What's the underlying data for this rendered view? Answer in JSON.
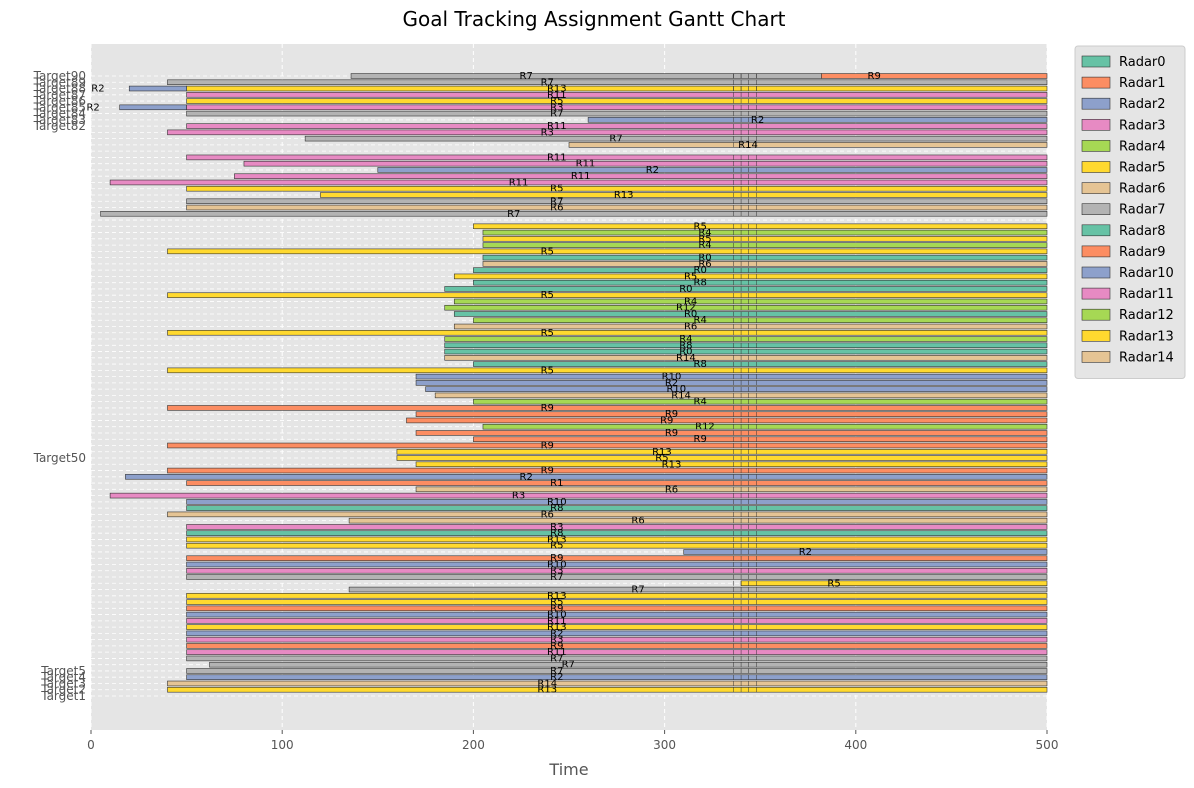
{
  "chart_data": {
    "type": "gantt",
    "title": "Goal Tracking Assignment Gantt Chart",
    "xlabel": "Time",
    "ylabel": "",
    "xlim": [
      0,
      500
    ],
    "xticks": [
      0,
      100,
      200,
      300,
      400,
      500
    ],
    "grid": true,
    "legend_position": "outside-right-top",
    "colors": {
      "background": "#e5e5e5",
      "grid": "#ffffff",
      "text": "#555555"
    },
    "radars": [
      {
        "name": "Radar0",
        "color": "#66c2a5"
      },
      {
        "name": "Radar1",
        "color": "#fc8d62"
      },
      {
        "name": "Radar2",
        "color": "#8da0cb"
      },
      {
        "name": "Radar3",
        "color": "#e78ac3"
      },
      {
        "name": "Radar4",
        "color": "#a6d854"
      },
      {
        "name": "Radar5",
        "color": "#ffd92f"
      },
      {
        "name": "Radar6",
        "color": "#e5c494"
      },
      {
        "name": "Radar7",
        "color": "#b3b3b3"
      },
      {
        "name": "Radar8",
        "color": "#66c2a5"
      },
      {
        "name": "Radar9",
        "color": "#fc8d62"
      },
      {
        "name": "Radar10",
        "color": "#8da0cb"
      },
      {
        "name": "Radar11",
        "color": "#e78ac3"
      },
      {
        "name": "Radar12",
        "color": "#a6d854"
      },
      {
        "name": "Radar13",
        "color": "#ffd92f"
      },
      {
        "name": "Radar14",
        "color": "#e5c494"
      }
    ],
    "targets_top": [
      "Target90",
      "Target89",
      "Target88",
      "Target87",
      "Target86",
      "Target85",
      "Target84",
      "Target83",
      "Target82"
    ],
    "targets_bottom": [
      "Target5",
      "Target4",
      "Target3",
      "Target2",
      "Target1"
    ],
    "targets_mid": [
      "Target50"
    ],
    "tasks": [
      {
        "row": 0,
        "start": 136,
        "end": 382,
        "radar": 7,
        "label": "R7"
      },
      {
        "row": 0,
        "start": 382,
        "end": 500,
        "radar": 9,
        "label": "R9"
      },
      {
        "row": 1,
        "start": 40,
        "end": 500,
        "radar": 7,
        "label": "R7"
      },
      {
        "row": 2,
        "start": 50,
        "end": 500,
        "radar": 13,
        "label": "R13"
      },
      {
        "row": 2,
        "start": 20,
        "end": 50,
        "radar": 2,
        "label": "R2"
      },
      {
        "row": 3,
        "start": 50,
        "end": 500,
        "radar": 11,
        "label": "R11"
      },
      {
        "row": 4,
        "start": 50,
        "end": 500,
        "radar": 5,
        "label": "R5"
      },
      {
        "row": 5,
        "start": 15,
        "end": 50,
        "radar": 2,
        "label": "R2"
      },
      {
        "row": 5,
        "start": 50,
        "end": 500,
        "radar": 3,
        "label": "R3"
      },
      {
        "row": 6,
        "start": 50,
        "end": 500,
        "radar": 7,
        "label": "R7"
      },
      {
        "row": 7,
        "start": 260,
        "end": 500,
        "radar": 2,
        "label": "R2"
      },
      {
        "row": 8,
        "start": 50,
        "end": 500,
        "radar": 11,
        "label": "R11"
      },
      {
        "row": 9,
        "start": 40,
        "end": 500,
        "radar": 3,
        "label": "R3"
      },
      {
        "row": 10,
        "start": 112,
        "end": 500,
        "radar": 7,
        "label": "R7"
      },
      {
        "row": 11,
        "start": 250,
        "end": 500,
        "radar": 14,
        "label": "R14"
      },
      {
        "row": 13,
        "start": 50,
        "end": 500,
        "radar": 11,
        "label": "R11"
      },
      {
        "row": 14,
        "start": 80,
        "end": 500,
        "radar": 11,
        "label": "R11"
      },
      {
        "row": 15,
        "start": 150,
        "end": 500,
        "radar": 2,
        "label": "R2"
      },
      {
        "row": 16,
        "start": 75,
        "end": 500,
        "radar": 11,
        "label": "R11"
      },
      {
        "row": 17,
        "start": 10,
        "end": 500,
        "radar": 11,
        "label": "R11"
      },
      {
        "row": 18,
        "start": 50,
        "end": 500,
        "radar": 5,
        "label": "R5"
      },
      {
        "row": 19,
        "start": 120,
        "end": 500,
        "radar": 13,
        "label": "R13"
      },
      {
        "row": 20,
        "start": 50,
        "end": 500,
        "radar": 7,
        "label": "R7"
      },
      {
        "row": 21,
        "start": 50,
        "end": 500,
        "radar": 6,
        "label": "R6"
      },
      {
        "row": 22,
        "start": 5,
        "end": 500,
        "radar": 7,
        "label": "R7"
      },
      {
        "row": 24,
        "start": 200,
        "end": 500,
        "radar": 5,
        "label": "R5"
      },
      {
        "row": 25,
        "start": 205,
        "end": 500,
        "radar": 4,
        "label": "R4"
      },
      {
        "row": 26,
        "start": 205,
        "end": 500,
        "radar": 5,
        "label": "R5"
      },
      {
        "row": 27,
        "start": 205,
        "end": 500,
        "radar": 4,
        "label": "R4"
      },
      {
        "row": 28,
        "start": 40,
        "end": 500,
        "radar": 5,
        "label": "R5"
      },
      {
        "row": 29,
        "start": 205,
        "end": 500,
        "radar": 0,
        "label": "R0"
      },
      {
        "row": 30,
        "start": 205,
        "end": 500,
        "radar": 6,
        "label": "R6"
      },
      {
        "row": 31,
        "start": 200,
        "end": 500,
        "radar": 0,
        "label": "R0"
      },
      {
        "row": 32,
        "start": 190,
        "end": 500,
        "radar": 5,
        "label": "R5"
      },
      {
        "row": 33,
        "start": 200,
        "end": 500,
        "radar": 8,
        "label": "R8"
      },
      {
        "row": 34,
        "start": 185,
        "end": 500,
        "radar": 0,
        "label": "R0"
      },
      {
        "row": 35,
        "start": 40,
        "end": 500,
        "radar": 5,
        "label": "R5"
      },
      {
        "row": 36,
        "start": 190,
        "end": 500,
        "radar": 4,
        "label": "R4"
      },
      {
        "row": 37,
        "start": 185,
        "end": 500,
        "radar": 12,
        "label": "R12"
      },
      {
        "row": 38,
        "start": 190,
        "end": 500,
        "radar": 0,
        "label": "R0"
      },
      {
        "row": 39,
        "start": 200,
        "end": 500,
        "radar": 4,
        "label": "R4"
      },
      {
        "row": 40,
        "start": 190,
        "end": 500,
        "radar": 6,
        "label": "R6"
      },
      {
        "row": 41,
        "start": 40,
        "end": 500,
        "radar": 5,
        "label": "R5"
      },
      {
        "row": 42,
        "start": 185,
        "end": 500,
        "radar": 4,
        "label": "R4"
      },
      {
        "row": 43,
        "start": 185,
        "end": 500,
        "radar": 8,
        "label": "R8"
      },
      {
        "row": 44,
        "start": 185,
        "end": 500,
        "radar": 0,
        "label": "R0"
      },
      {
        "row": 45,
        "start": 185,
        "end": 500,
        "radar": 14,
        "label": "R14"
      },
      {
        "row": 46,
        "start": 200,
        "end": 500,
        "radar": 8,
        "label": "R8"
      },
      {
        "row": 47,
        "start": 40,
        "end": 500,
        "radar": 5,
        "label": "R5"
      },
      {
        "row": 48,
        "start": 170,
        "end": 500,
        "radar": 10,
        "label": "R10"
      },
      {
        "row": 49,
        "start": 170,
        "end": 500,
        "radar": 2,
        "label": "R2"
      },
      {
        "row": 50,
        "start": 175,
        "end": 500,
        "radar": 10,
        "label": "R10"
      },
      {
        "row": 51,
        "start": 180,
        "end": 500,
        "radar": 14,
        "label": "R14"
      },
      {
        "row": 52,
        "start": 200,
        "end": 500,
        "radar": 4,
        "label": "R4"
      },
      {
        "row": 53,
        "start": 40,
        "end": 500,
        "radar": 9,
        "label": "R9"
      },
      {
        "row": 54,
        "start": 170,
        "end": 500,
        "radar": 9,
        "label": "R9"
      },
      {
        "row": 55,
        "start": 165,
        "end": 500,
        "radar": 9,
        "label": "R9"
      },
      {
        "row": 56,
        "start": 205,
        "end": 500,
        "radar": 12,
        "label": "R12"
      },
      {
        "row": 57,
        "start": 170,
        "end": 500,
        "radar": 9,
        "label": "R9"
      },
      {
        "row": 58,
        "start": 200,
        "end": 500,
        "radar": 9,
        "label": "R9"
      },
      {
        "row": 59,
        "start": 40,
        "end": 500,
        "radar": 9,
        "label": "R9"
      },
      {
        "row": 60,
        "start": 160,
        "end": 500,
        "radar": 13,
        "label": "R13"
      },
      {
        "row": 61,
        "start": 160,
        "end": 500,
        "radar": 5,
        "label": "R5"
      },
      {
        "row": 62,
        "start": 170,
        "end": 500,
        "radar": 13,
        "label": "R13"
      },
      {
        "row": 63,
        "start": 40,
        "end": 500,
        "radar": 9,
        "label": "R9"
      },
      {
        "row": 64,
        "start": 18,
        "end": 500,
        "radar": 2,
        "label": "R2"
      },
      {
        "row": 65,
        "start": 50,
        "end": 500,
        "radar": 1,
        "label": "R1"
      },
      {
        "row": 66,
        "start": 170,
        "end": 500,
        "radar": 6,
        "label": "R6"
      },
      {
        "row": 67,
        "start": 10,
        "end": 500,
        "radar": 3,
        "label": "R3"
      },
      {
        "row": 68,
        "start": 50,
        "end": 500,
        "radar": 10,
        "label": "R10"
      },
      {
        "row": 69,
        "start": 50,
        "end": 500,
        "radar": 8,
        "label": "R8"
      },
      {
        "row": 70,
        "start": 40,
        "end": 500,
        "radar": 6,
        "label": "R6"
      },
      {
        "row": 71,
        "start": 135,
        "end": 500,
        "radar": 6,
        "label": "R6"
      },
      {
        "row": 72,
        "start": 50,
        "end": 500,
        "radar": 3,
        "label": "R3"
      },
      {
        "row": 73,
        "start": 50,
        "end": 500,
        "radar": 8,
        "label": "R8"
      },
      {
        "row": 74,
        "start": 50,
        "end": 500,
        "radar": 13,
        "label": "R13"
      },
      {
        "row": 75,
        "start": 50,
        "end": 500,
        "radar": 5,
        "label": "R5"
      },
      {
        "row": 76,
        "start": 310,
        "end": 500,
        "radar": 2,
        "label": "R2"
      },
      {
        "row": 77,
        "start": 50,
        "end": 500,
        "radar": 9,
        "label": "R9"
      },
      {
        "row": 78,
        "start": 50,
        "end": 500,
        "radar": 10,
        "label": "R10"
      },
      {
        "row": 79,
        "start": 50,
        "end": 500,
        "radar": 3,
        "label": "R3"
      },
      {
        "row": 80,
        "start": 50,
        "end": 500,
        "radar": 7,
        "label": "R7"
      },
      {
        "row": 81,
        "start": 340,
        "end": 500,
        "radar": 5,
        "label": "R5"
      },
      {
        "row": 82,
        "start": 135,
        "end": 500,
        "radar": 7,
        "label": "R7"
      },
      {
        "row": 83,
        "start": 50,
        "end": 500,
        "radar": 13,
        "label": "R13"
      },
      {
        "row": 84,
        "start": 50,
        "end": 500,
        "radar": 5,
        "label": "R5"
      },
      {
        "row": 85,
        "start": 50,
        "end": 500,
        "radar": 9,
        "label": "R9"
      },
      {
        "row": 86,
        "start": 50,
        "end": 500,
        "radar": 10,
        "label": "R10"
      },
      {
        "row": 87,
        "start": 50,
        "end": 500,
        "radar": 11,
        "label": "R11"
      },
      {
        "row": 88,
        "start": 50,
        "end": 500,
        "radar": 13,
        "label": "R13"
      },
      {
        "row": 89,
        "start": 50,
        "end": 500,
        "radar": 2,
        "label": "R2"
      },
      {
        "row": 90,
        "start": 50,
        "end": 500,
        "radar": 3,
        "label": "R3"
      },
      {
        "row": 91,
        "start": 50,
        "end": 500,
        "radar": 9,
        "label": "R9"
      },
      {
        "row": 92,
        "start": 50,
        "end": 500,
        "radar": 11,
        "label": "R11"
      },
      {
        "row": 93,
        "start": 50,
        "end": 500,
        "radar": 7,
        "label": "R7"
      },
      {
        "row": 94,
        "start": 62,
        "end": 500,
        "radar": 7,
        "label": "R7"
      },
      {
        "row": 95,
        "start": 50,
        "end": 500,
        "radar": 7,
        "label": "R7"
      },
      {
        "row": 96,
        "start": 50,
        "end": 500,
        "radar": 2,
        "label": "R2"
      },
      {
        "row": 97,
        "start": 40,
        "end": 500,
        "radar": 14,
        "label": "R14"
      },
      {
        "row": 98,
        "start": 40,
        "end": 500,
        "radar": 13,
        "label": "R13"
      }
    ]
  }
}
